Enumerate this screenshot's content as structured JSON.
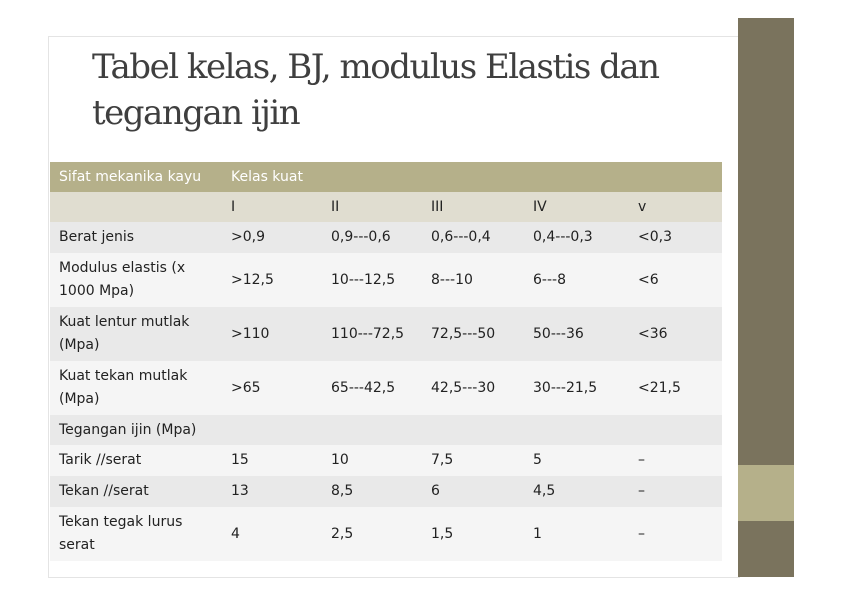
{
  "title_line1": "Tabel kelas, BJ, modulus Elastis dan",
  "title_line2": "tegangan ijin",
  "table": {
    "header": {
      "col1": "Sifat mekanika kayu",
      "col2": "Kelas kuat"
    },
    "classes": [
      "I",
      "II",
      "III",
      "IV",
      "v"
    ],
    "rows": [
      {
        "label": "Berat jenis",
        "values": [
          ">0,9",
          "0,9---0,6",
          "0,6---0,4",
          "0,4---0,3",
          "<0,3"
        ]
      },
      {
        "label": "Modulus elastis (x 1000 Mpa)",
        "values": [
          ">12,5",
          "10---12,5",
          "8---10",
          "6---8",
          "<6"
        ]
      },
      {
        "label": "Kuat lentur mutlak (Mpa)",
        "values": [
          ">110",
          "110---72,5",
          "72,5---50",
          "50---36",
          "<36"
        ]
      },
      {
        "label": "Kuat tekan mutlak (Mpa)",
        "values": [
          ">65",
          "65---42,5",
          "42,5---30",
          "30---21,5",
          "<21,5"
        ]
      },
      {
        "group": "Tegangan ijin (Mpa)"
      },
      {
        "label": "Tarik //serat",
        "values": [
          "15",
          "10",
          "7,5",
          "5",
          "–"
        ]
      },
      {
        "label": "Tekan //serat",
        "values": [
          "13",
          "8,5",
          "6",
          "4,5",
          "–"
        ]
      },
      {
        "label": "Tekan tegak lurus serat",
        "values": [
          "4",
          "2,5",
          "1,5",
          "1",
          "–"
        ]
      }
    ]
  },
  "colors": {
    "header": "#b5b08a",
    "sidebar_dark": "#7a735d",
    "row_odd": "#e9e9e9",
    "row_even": "#f5f5f5"
  }
}
